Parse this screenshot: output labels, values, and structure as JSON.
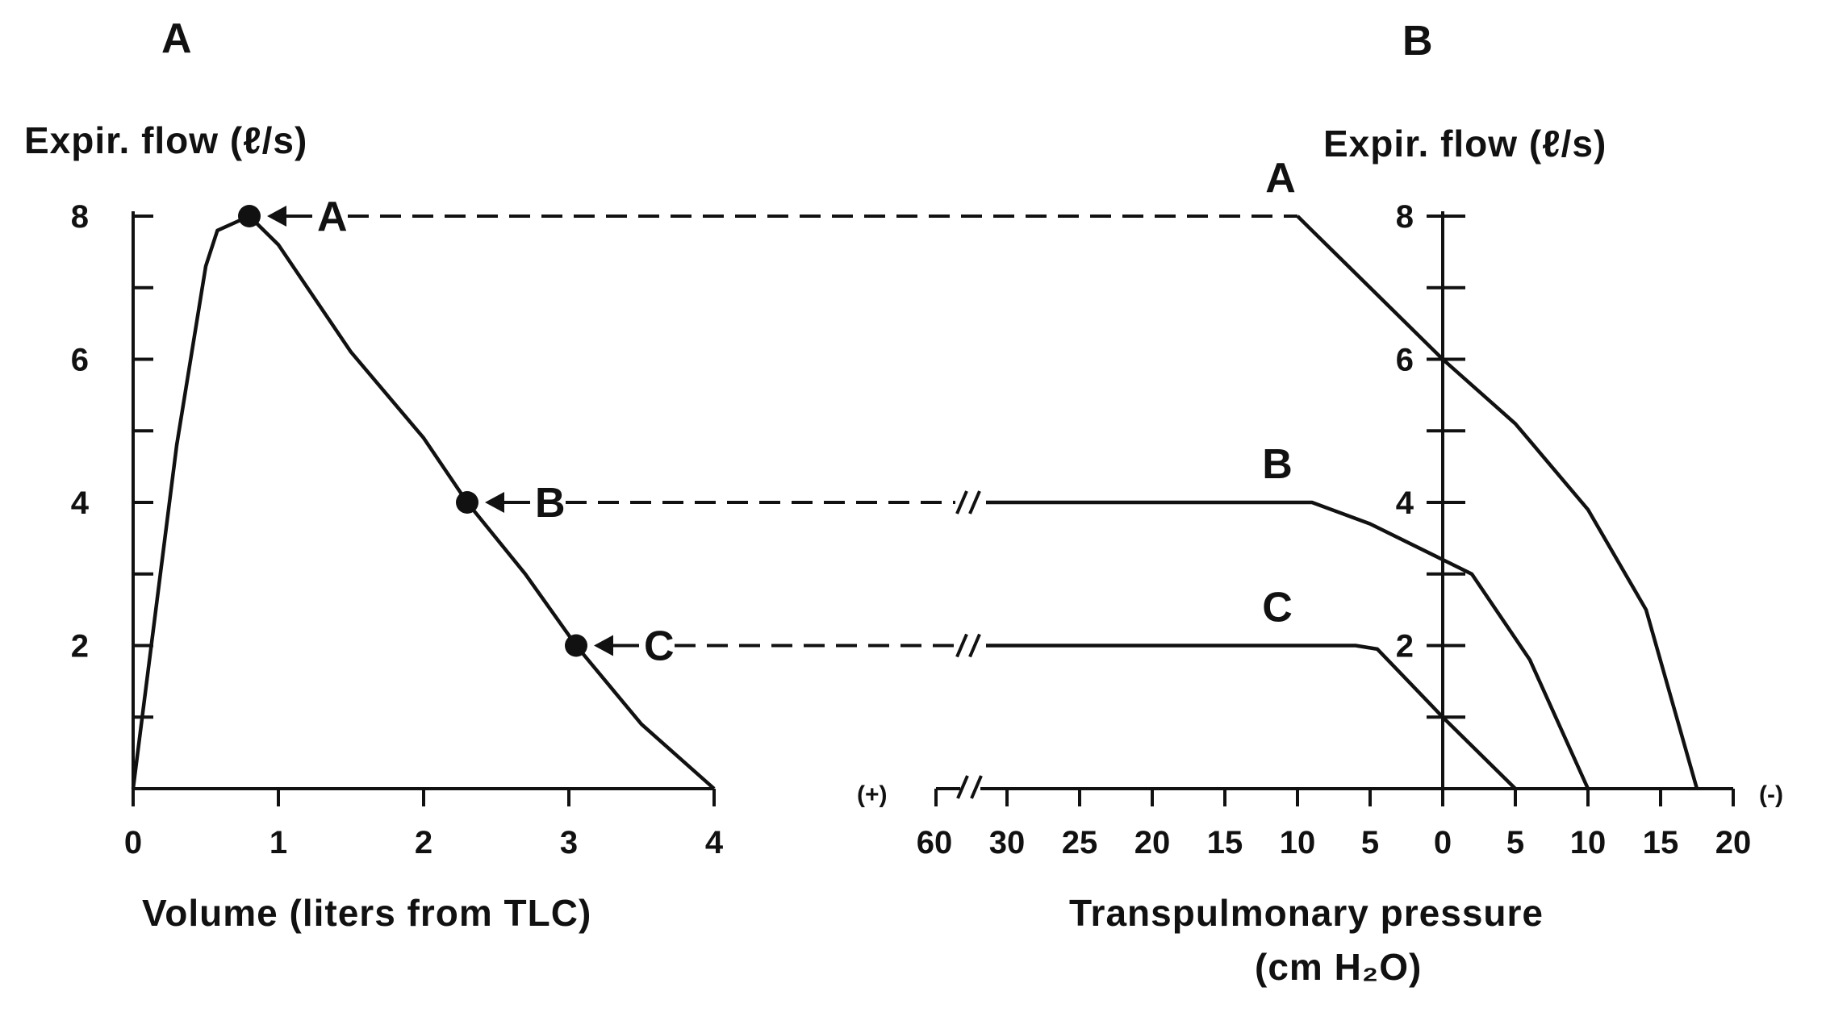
{
  "chart_data": [
    {
      "id": "A",
      "type": "line",
      "panel_label": "A",
      "ylabel": "Expir. flow (ℓ/s)",
      "xlabel": "Volume (liters from TLC)",
      "xlim": [
        0,
        4
      ],
      "ylim": [
        0,
        8
      ],
      "xticks": [
        "0",
        "1",
        "2",
        "3",
        "4"
      ],
      "yticks": [
        "2",
        "4",
        "6",
        "8"
      ],
      "series": [
        {
          "x": [
            0,
            0.3,
            0.5,
            0.58,
            0.8,
            1.0,
            1.5,
            2.0,
            2.3,
            2.7,
            3.05,
            3.5,
            4.0
          ],
          "y": [
            0,
            4.8,
            7.3,
            7.8,
            8.0,
            7.6,
            6.1,
            4.9,
            4.0,
            3.0,
            2.0,
            0.9,
            0
          ]
        }
      ],
      "points": [
        {
          "label": "A",
          "x": 0.8,
          "y": 8
        },
        {
          "label": "B",
          "x": 2.3,
          "y": 4
        },
        {
          "label": "C",
          "x": 3.05,
          "y": 2
        }
      ]
    },
    {
      "id": "B",
      "type": "line",
      "panel_label": "B",
      "ylabel": "Expir. flow (ℓ/s)",
      "xlabel": "Transpulmonary pressure",
      "xlabel_units": "(cm H₂O)",
      "xticks": [
        "60",
        "30",
        "25",
        "20",
        "15",
        "10",
        "5",
        "0",
        "5",
        "10",
        "15",
        "20"
      ],
      "x_values_signed": [
        60,
        30,
        25,
        20,
        15,
        10,
        5,
        0,
        -5,
        -10,
        -15,
        -20
      ],
      "x_sign_left": "(+)",
      "x_sign_right": "(-)",
      "ylim": [
        0,
        8
      ],
      "yticks": [
        "2",
        "4",
        "6",
        "8"
      ],
      "series": [
        {
          "name": "A",
          "x": [
            10,
            9,
            6,
            0,
            -5,
            -10,
            -14,
            -17.5
          ],
          "y": [
            8,
            7.8,
            7.2,
            6.0,
            5.1,
            3.9,
            2.5,
            0
          ]
        },
        {
          "name": "B",
          "x": [
            30,
            9,
            5,
            0,
            -2,
            -6,
            -10
          ],
          "y": [
            4,
            4,
            3.7,
            3.2,
            3.0,
            1.8,
            0
          ]
        },
        {
          "name": "C",
          "x": [
            30,
            6,
            4.5,
            0,
            -5
          ],
          "y": [
            2,
            2,
            1.95,
            1.0,
            0
          ]
        }
      ]
    }
  ]
}
